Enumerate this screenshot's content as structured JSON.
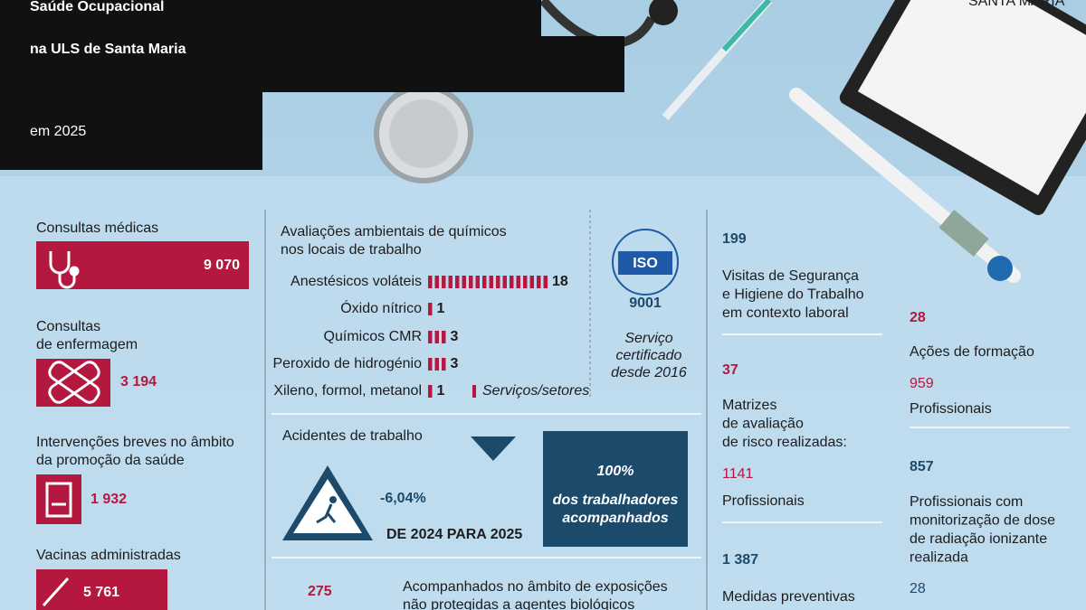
{
  "header": {
    "title_lines": [
      "Saúde Ocupacional",
      "na ULS de Santa Maria",
      "em 2025"
    ],
    "logo": "SANTA MARIA"
  },
  "left": [
    {
      "label_lines": [
        "Consultas médicas"
      ],
      "value": "9 070"
    },
    {
      "label_lines": [
        "Consultas",
        "de enfermagem"
      ],
      "value": "3 194"
    },
    {
      "label_lines": [
        "Intervenções breves no âmbito",
        "da promoção da saúde"
      ],
      "value": "1 932"
    },
    {
      "label_lines": [
        "Vacinas administradas"
      ],
      "value": "5 761"
    }
  ],
  "chemicals": {
    "title_lines": [
      "Avaliações ambientais de químicos",
      "nos locais de trabalho"
    ],
    "rows": [
      {
        "label": "Anestésicos voláteis",
        "value": 18
      },
      {
        "label": "Óxido nítrico",
        "value": 1
      },
      {
        "label": "Químicos CMR",
        "value": 3
      },
      {
        "label": "Peroxido de hidrogénio",
        "value": 3
      },
      {
        "label": "Xileno, formol, metanol",
        "value": 1
      }
    ],
    "legend": "Serviços/setores"
  },
  "iso": {
    "logo": "ISO",
    "code": "9001",
    "caption_lines": [
      "Serviço",
      "certificado",
      "desde 2016"
    ]
  },
  "accidents": {
    "title": "Acidentes de trabalho",
    "change": "-6,04%",
    "period": "DE 2024 PARA 2025",
    "coverage": "100%",
    "coverage_lines": [
      "dos trabalhadores",
      "acompanhados"
    ]
  },
  "exposure": {
    "value": "275",
    "lines": [
      "Acompanhados no âmbito de exposições",
      "não protegidas a agentes biológicos"
    ]
  },
  "stats": [
    {
      "value": "199",
      "lines": [
        "Visitas de Segurança",
        "e Higiene do Trabalho",
        "em contexto laboral"
      ]
    },
    {
      "value": "37",
      "lines": [
        "Matrizes",
        "de avaliação",
        "de risco realizadas:"
      ],
      "sub_value": "1141",
      "sub_label": "Profissionais"
    },
    {
      "value": "1 387",
      "lines": [
        "Medidas preventivas"
      ]
    },
    {
      "value": "28",
      "lines": [
        "Ações de formação"
      ],
      "sub_value": "959",
      "sub_label": "Profissionais"
    },
    {
      "value": "857",
      "lines": [
        "Profissionais com",
        "monitorização de dose",
        "de radiação ionizante",
        "realizada"
      ],
      "sub_value": "28"
    }
  ]
}
